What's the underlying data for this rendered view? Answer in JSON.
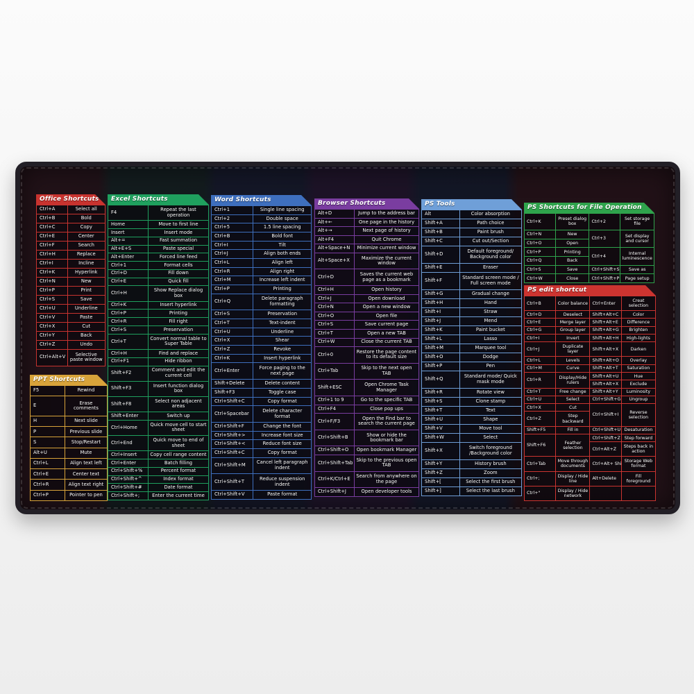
{
  "pad": {
    "base_color": "#14121a",
    "edge_color": "#221f26"
  },
  "sections": [
    {
      "title": "Office Shortcuts",
      "accent": "#c8332f",
      "cols": 2,
      "rows": [
        [
          "Ctrl+A",
          "Select all"
        ],
        [
          "Ctrl+B",
          "Bold"
        ],
        [
          "Ctrl+C",
          "Copy"
        ],
        [
          "Ctrl+E",
          "Center"
        ],
        [
          "Ctrl+F",
          "Search"
        ],
        [
          "Ctrl+H",
          "Replace"
        ],
        [
          "Ctrl+I",
          "Incline"
        ],
        [
          "Ctrl+K",
          "Hyperlink"
        ],
        [
          "Ctrl+N",
          "New"
        ],
        [
          "Ctrl+P",
          "Print"
        ],
        [
          "Ctrl+S",
          "Save"
        ],
        [
          "Ctrl+U",
          "Underline"
        ],
        [
          "Ctrl+V",
          "Paste"
        ],
        [
          "Ctrl+X",
          "Cut"
        ],
        [
          "Ctrl+Y",
          "Back"
        ],
        [
          "Ctrl+Z",
          "Undo"
        ],
        [
          "Ctrl+Alt+V",
          "Selective paste window"
        ]
      ]
    },
    {
      "title": "PPT Shortcuts",
      "accent": "#d8a33a",
      "cols": 2,
      "rows": [
        [
          "F5",
          "Rewind"
        ],
        [
          "E",
          "Erase comments"
        ],
        [
          "H",
          "Next slide"
        ],
        [
          "P",
          "Previous slide"
        ],
        [
          "S",
          "Stop/Restart"
        ],
        [
          "Alt+U",
          "Mute"
        ],
        [
          "Ctrl+L",
          "Align text left"
        ],
        [
          "Ctrl+E",
          "Center text"
        ],
        [
          "Ctrl+R",
          "Align text right"
        ],
        [
          "Ctrl+P",
          "Pointer to pen"
        ]
      ]
    },
    {
      "title": "Excel Shortcuts",
      "accent": "#1fa05e",
      "cols": 2,
      "rows": [
        [
          "F4",
          "Repeat the last operation"
        ],
        [
          "Home",
          "Move to first line"
        ],
        [
          "Insert",
          "Insert mode"
        ],
        [
          "Alt+=",
          "Fast summation"
        ],
        [
          "Alt+E+S",
          "Paste special"
        ],
        [
          "Alt+Enter",
          "Forced line feed"
        ],
        [
          "Ctrl+1",
          "Format cells"
        ],
        [
          "Ctrl+D",
          "Fill down"
        ],
        [
          "Ctrl+E",
          "Quick fill"
        ],
        [
          "Ctrl+H",
          "Show Replace dialog box"
        ],
        [
          "Ctrl+K",
          "Insert hyperlink"
        ],
        [
          "Ctrl+P",
          "Printing"
        ],
        [
          "Ctrl+R",
          "Fill right"
        ],
        [
          "Ctrl+S",
          "Preservation"
        ],
        [
          "Ctrl+T",
          "Convert normal table to Super Table"
        ],
        [
          "Ctrl+H",
          "Find and replace"
        ],
        [
          "Ctrl+F1",
          "Hide ribbon"
        ],
        [
          "Shift+F2",
          "Comment and edit the current cell"
        ],
        [
          "Shift+F3",
          "Insert function dialog box"
        ],
        [
          "Shift+F8",
          "Select non adjacent areas"
        ],
        [
          "Shift+Enter",
          "Switch up"
        ],
        [
          "Ctrl+Home",
          "Quick move cell to start sheet"
        ],
        [
          "Ctrl+End",
          "Quick move to end of sheet"
        ],
        [
          "Ctrl+Insert",
          "Copy cell range content"
        ],
        [
          "Ctrl+Enter",
          "Batch filling"
        ],
        [
          "Ctrl+Shift+%",
          "Percent format"
        ],
        [
          "Ctrl+Shift+^",
          "Index format"
        ],
        [
          "Ctrl+Shift+#",
          "Date format"
        ],
        [
          "Ctrl+Shift+;",
          "Enter the current time"
        ]
      ]
    },
    {
      "title": "Word Shortcuts",
      "accent": "#3e6fbe",
      "cols": 2,
      "rows": [
        [
          "Ctrl+1",
          "Single line spacing"
        ],
        [
          "Ctrl+2",
          "Double space"
        ],
        [
          "Ctrl+5",
          "1.5 line spacing"
        ],
        [
          "Ctrl+B",
          "Bold font"
        ],
        [
          "Ctrl+I",
          "Tilt"
        ],
        [
          "Ctrl+J",
          "Align both ends"
        ],
        [
          "Ctrl+L",
          "Align left"
        ],
        [
          "Ctrl+R",
          "Align right"
        ],
        [
          "Ctrl+M",
          "Increase left indent"
        ],
        [
          "Ctrl+P",
          "Printing"
        ],
        [
          "Ctrl+Q",
          "Delete paragraph formatting"
        ],
        [
          "Ctrl+S",
          "Preservation"
        ],
        [
          "Ctrl+T",
          "Text-indent"
        ],
        [
          "Ctrl+U",
          "Underline"
        ],
        [
          "Ctrl+X",
          "Shear"
        ],
        [
          "Ctrl+Z",
          "Revoke"
        ],
        [
          "Ctrl+K",
          "Insert hyperlink"
        ],
        [
          "Ctrl+Enter",
          "Force paging to the next page"
        ],
        [
          "Shift+Delete",
          "Delete content"
        ],
        [
          "Shift+F3",
          "Toggle case"
        ],
        [
          "Ctrl+Shift+C",
          "Copy format"
        ],
        [
          "Ctrl+Spacebar",
          "Delete character format"
        ],
        [
          "Ctrl+Shift+F",
          "Change the font"
        ],
        [
          "Ctrl+Shift+>",
          "Increase font size"
        ],
        [
          "Ctrl+Shift+<",
          "Reduce font size"
        ],
        [
          "Ctrl+Shift+C",
          "Copy format"
        ],
        [
          "Ctrl+Shift+M",
          "Cancel left paragraph indent"
        ],
        [
          "Ctrl+Shift+T",
          "Reduce suspension indent"
        ],
        [
          "Ctrl+Shift+V",
          "Paste format"
        ]
      ]
    },
    {
      "title": "Browser Shortcuts",
      "accent": "#7a3da0",
      "cols": 2,
      "rows": [
        [
          "Alt+D",
          "Jump to the address bar"
        ],
        [
          "Alt+←",
          "One page in the history"
        ],
        [
          "Alt+→",
          "Next page of history"
        ],
        [
          "Alt+F4",
          "Quit Chrome"
        ],
        [
          "Alt+Space+N",
          "Minimize current window"
        ],
        [
          "Alt+Space+X",
          "Maximize the current window"
        ],
        [
          "Ctrl+D",
          "Saves the current web page as a bookmark"
        ],
        [
          "Ctrl+H",
          "Open history"
        ],
        [
          "Ctrl+J",
          "Open download"
        ],
        [
          "Ctrl+N",
          "Open a new window"
        ],
        [
          "Ctrl+O",
          "Open file"
        ],
        [
          "Ctrl+S",
          "Save current page"
        ],
        [
          "Ctrl+T",
          "Open a new TAB"
        ],
        [
          "Ctrl+W",
          "Close the current TAB"
        ],
        [
          "Ctrl+0",
          "Restore the page content to its default size"
        ],
        [
          "Ctrl+Tab",
          "Skip to the next open TAB"
        ],
        [
          "Shift+ESC",
          "Open Chrome Task Manager"
        ],
        [
          "Ctrl+1 to 9",
          "Go to the specific TAB"
        ],
        [
          "Ctrl+F4",
          "Close pop ups"
        ],
        [
          "Ctrl+F/F3",
          "Open the Find bar to search the current page"
        ],
        [
          "Ctrl+Shift+B",
          "Show or hide the bookmark bar"
        ],
        [
          "Ctrl+Shift+O",
          "Open bookmark Manager"
        ],
        [
          "Ctrl+Shift+Tab",
          "Skip to the previous open TAB"
        ],
        [
          "Ctrl+K/Ctrl+E",
          "Search from anywhere on the page"
        ],
        [
          "Ctrl+Shift+J",
          "Open developer tools"
        ]
      ]
    },
    {
      "title": "PS Tools",
      "accent": "#6f9fd8",
      "cols": 2,
      "rows": [
        [
          "Alt",
          "Color absorption"
        ],
        [
          "Shift+A",
          "Path choice"
        ],
        [
          "Shift+B",
          "Paint brush"
        ],
        [
          "Shift+C",
          "Cut out/Section"
        ],
        [
          "Shift+D",
          "Default foreground/ Background color"
        ],
        [
          "Shift+E",
          "Eraser"
        ],
        [
          "Shift+F",
          "Standard screen mode / Full screen mode"
        ],
        [
          "Shift+G",
          "Gradual change"
        ],
        [
          "Shift+H",
          "Hand"
        ],
        [
          "Shift+I",
          "Straw"
        ],
        [
          "Shift+J",
          "Mend"
        ],
        [
          "Shift+K",
          "Paint bucket"
        ],
        [
          "Shift+L",
          "Lasso"
        ],
        [
          "Shift+M",
          "Marquee tool"
        ],
        [
          "Shift+O",
          "Dodge"
        ],
        [
          "Shift+P",
          "Pen"
        ],
        [
          "Shift+Q",
          "Standard mode/ Quick mask mode"
        ],
        [
          "Shift+R",
          "Rotate view"
        ],
        [
          "Shift+S",
          "Clone stamp"
        ],
        [
          "Shift+T",
          "Text"
        ],
        [
          "Shift+U",
          "Shape"
        ],
        [
          "Shift+V",
          "Move tool"
        ],
        [
          "Shift+W",
          "Select"
        ],
        [
          "Shift+X",
          "Switch foreground /Background color"
        ],
        [
          "Shift+Y",
          "History brush"
        ],
        [
          "Shift+Z",
          "Zoom"
        ],
        [
          "Shift+[",
          "Select the first brush"
        ],
        [
          "Shift+]",
          "Select the last brush"
        ]
      ]
    },
    {
      "title": "PS Shortcuts for File Operation",
      "accent": "#2fa34c",
      "cols": 4,
      "rows": [
        [
          "Ctrl+K",
          "Preset dialog box",
          "Ctrl+2",
          "Set storage file"
        ],
        [
          "Ctrl+N",
          "New",
          {
            "t": "Ctrl+3",
            "r": 2
          },
          {
            "t": "Set display and cursor",
            "r": 2
          }
        ],
        [
          "Ctrl+O",
          "Open"
        ],
        [
          "Ctrl+P",
          "Printing",
          {
            "t": "Ctrl+4",
            "r": 2
          },
          {
            "t": "Internal luminescence",
            "r": 2
          }
        ],
        [
          "Ctrl+Q",
          "Back"
        ],
        [
          "Ctrl+S",
          "Save",
          "Ctrl+Shift+S",
          "Save as"
        ],
        [
          "Ctrl+W",
          "Close",
          "Ctrl+Shift+P",
          "Page setup"
        ]
      ]
    },
    {
      "title": "PS edit shortcut",
      "accent": "#cc3430",
      "cols": 4,
      "rows": [
        [
          "Ctrl+B",
          "Color balance",
          "Ctrl+Enter",
          "Creat selection"
        ],
        [
          "Ctrl+D",
          "Deselect",
          "Shift+Alt+C",
          "Color"
        ],
        [
          "Ctrl+E",
          "Merge layer",
          "Shift+Alt+E",
          "Difference"
        ],
        [
          "Ctrl+G",
          "Group layer",
          "Shift+Alt+G",
          "Brighten"
        ],
        [
          "Ctrl+I",
          "Invert",
          "Shift+Alt+H",
          "High-lights"
        ],
        [
          "Ctrl+J",
          "Duplicate layer",
          "Shift+Alt+X",
          "Darken"
        ],
        [
          "Ctrl+L",
          "Levels",
          "Shift+Alt+O",
          "Overlay"
        ],
        [
          "Ctrl+M",
          "Curve",
          "Shift+Alt+T",
          "Saturation"
        ],
        [
          {
            "t": "Ctrl+R",
            "r": 2
          },
          {
            "t": "Display/Hide rulers",
            "r": 2
          },
          "Shift+Alt+U",
          "Hue"
        ],
        [
          "Shift+Alt+X",
          "Exclude"
        ],
        [
          "Ctrl+T",
          "Free change",
          "Shift+Alt+Y",
          "Luminosity"
        ],
        [
          "Ctrl+U",
          "Select",
          "Ctrl+Shift+G",
          "Ungroup"
        ],
        [
          "Ctrl+X",
          "Cut",
          {
            "t": "Ctrl+Shift+I",
            "r": 2
          },
          {
            "t": "Reverse selection",
            "r": 2
          }
        ],
        [
          "Ctrl+Z",
          "Step backward"
        ],
        [
          "Shift+F5",
          "Fill in",
          "Ctrl+Shift+U",
          "Desaturation"
        ],
        [
          {
            "t": "Shift+F6",
            "r": 2
          },
          {
            "t": "Feather selection",
            "r": 2
          },
          "Ctrl+Shift+Z",
          "Step forward"
        ],
        [
          "Ctrl+Alt+Z",
          "Steps back in action"
        ],
        [
          "Ctrl+Tab",
          "Move through documents",
          "Ctrl+Alt+ Shift+S",
          "Storage Web format"
        ],
        [
          "Ctrl+;",
          "Display / Hide line",
          "Alt+Delete",
          "Fill foreground"
        ],
        [
          "Ctrl+\"",
          "Display / Hide network",
          {
            "t": "",
            "r": 1
          },
          {
            "t": "",
            "r": 1
          }
        ]
      ]
    }
  ]
}
